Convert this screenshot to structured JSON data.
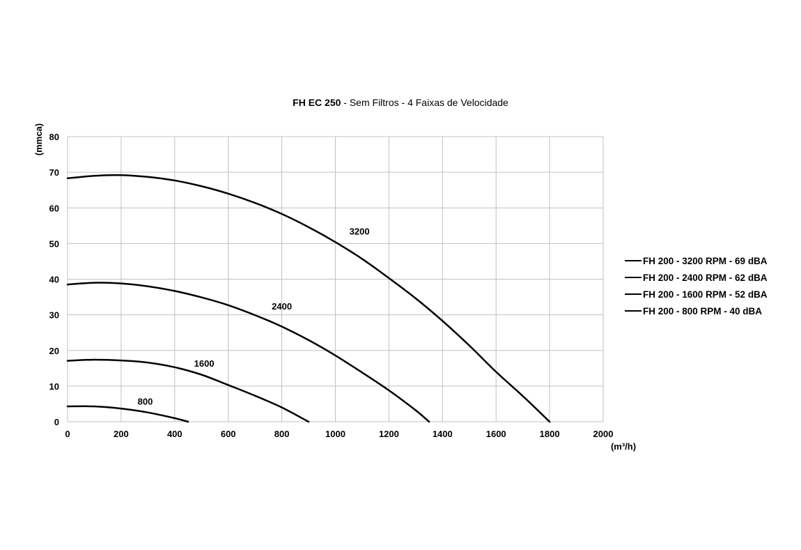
{
  "chart_data": {
    "type": "line",
    "title_bold": "FH EC 250",
    "title_rest": " - Sem Filtros - 4 Faixas de Velocidade",
    "xlabel": "(m³/h)",
    "ylabel": "(mmca)",
    "xlim": [
      0,
      2000
    ],
    "ylim": [
      0,
      80
    ],
    "xticks": [
      "0",
      "200",
      "400",
      "600",
      "800",
      "1000",
      "1200",
      "1400",
      "1600",
      "1800",
      "2000"
    ],
    "yticks": [
      "0",
      "10",
      "20",
      "30",
      "40",
      "50",
      "60",
      "70",
      "80"
    ],
    "grid": true,
    "legend_position": "right",
    "line_color": "#000000",
    "grid_color": "#c0c0c0",
    "series": [
      {
        "name": "FH 200 - 3200 RPM - 69 dBA",
        "curve_label": "3200",
        "label_at": [
          1090,
          52.5
        ],
        "x": [
          0,
          100,
          200,
          300,
          400,
          500,
          600,
          700,
          800,
          900,
          1000,
          1100,
          1200,
          1300,
          1400,
          1500,
          1600,
          1700,
          1800
        ],
        "y": [
          68.3,
          69.0,
          69.2,
          68.7,
          67.7,
          66.1,
          64.0,
          61.4,
          58.3,
          54.6,
          50.4,
          45.7,
          40.3,
          34.6,
          28.3,
          21.4,
          14.0,
          7.2,
          0
        ]
      },
      {
        "name": "FH 200 - 2400 RPM - 62 dBA",
        "curve_label": "2400",
        "label_at": [
          800,
          31.5
        ],
        "x": [
          0,
          100,
          200,
          300,
          400,
          500,
          600,
          700,
          800,
          900,
          1000,
          1100,
          1200,
          1300,
          1350
        ],
        "y": [
          38.5,
          39.0,
          38.8,
          38.0,
          36.7,
          34.9,
          32.7,
          29.9,
          26.7,
          22.9,
          18.6,
          13.8,
          8.8,
          3.2,
          0
        ]
      },
      {
        "name": "FH 200 - 1600 RPM - 52 dBA",
        "curve_label": "1600",
        "label_at": [
          510,
          15.5
        ],
        "x": [
          0,
          100,
          200,
          300,
          400,
          500,
          600,
          700,
          800,
          900
        ],
        "y": [
          17.1,
          17.4,
          17.2,
          16.6,
          15.3,
          13.2,
          10.3,
          7.3,
          4.0,
          0
        ]
      },
      {
        "name": "FH 200 - 800 RPM - 40 dBA",
        "curve_label": "800",
        "label_at": [
          290,
          4.8
        ],
        "x": [
          0,
          100,
          200,
          300,
          400,
          450
        ],
        "y": [
          4.3,
          4.3,
          3.7,
          2.6,
          1.0,
          0
        ]
      }
    ]
  }
}
